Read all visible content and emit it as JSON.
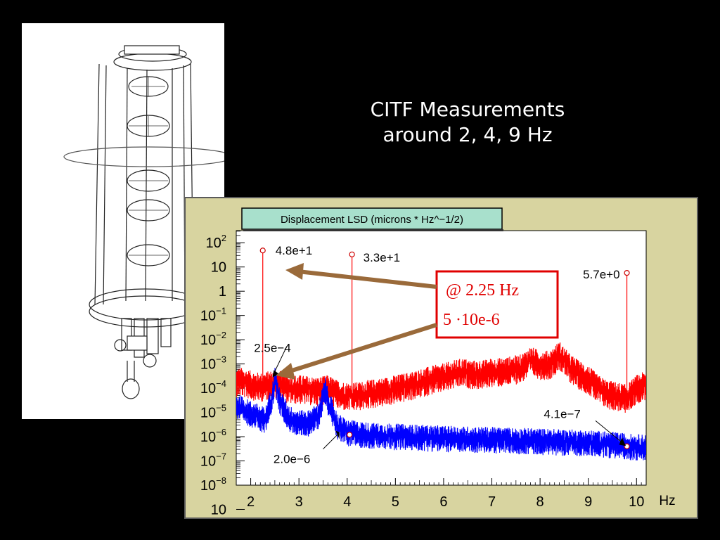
{
  "slide": {
    "title_line1": "CITF Measurements",
    "title_line2": "around 2, 4, 9 Hz"
  },
  "colors": {
    "background": "#000000",
    "frame": "#d8d4a0",
    "plot_bg": "#ffffff",
    "series_red": "#ff0000",
    "series_blue": "#0000ff",
    "callout_border": "#e00000",
    "callout_text": "#e00000",
    "arrow": "#9a6a3a",
    "top_arrow": "#0010e0",
    "bottom_arrow": "#ff3010"
  },
  "chart_data": {
    "type": "line",
    "title": "Displacement LSD (microns * Hz^−1/2)",
    "xlabel": "Hz",
    "ylabel": "",
    "x_scale": "linear",
    "y_scale": "log",
    "xlim": [
      1.7,
      10.2
    ],
    "ylim": [
      1e-08,
      316
    ],
    "x_ticks": [
      "2",
      "3",
      "4",
      "5",
      "6",
      "7",
      "8",
      "9",
      "10"
    ],
    "y_ticks": [
      {
        "base": "10",
        "exp": "2"
      },
      {
        "base": "10",
        "exp": ""
      },
      {
        "base": "1",
        "exp": ""
      },
      {
        "base": "10",
        "exp": "−1"
      },
      {
        "base": "10",
        "exp": "−2"
      },
      {
        "base": "10",
        "exp": "−3"
      },
      {
        "base": "10",
        "exp": "−4"
      },
      {
        "base": "10",
        "exp": "−5"
      },
      {
        "base": "10",
        "exp": "−6"
      },
      {
        "base": "10",
        "exp": "−7"
      },
      {
        "base": "10",
        "exp": "−8"
      },
      {
        "base": "10",
        "exp": ""
      }
    ],
    "series": [
      {
        "color": "red",
        "x": [
          1.8,
          2.0,
          2.2,
          2.4,
          2.6,
          2.8,
          3.0,
          3.2,
          3.4,
          3.6,
          3.8,
          4.0,
          4.2,
          4.4,
          4.6,
          4.8,
          5.0,
          5.2,
          5.4,
          5.6,
          5.8,
          6.0,
          6.2,
          6.4,
          6.6,
          6.8,
          7.0,
          7.2,
          7.4,
          7.6,
          7.8,
          8.0,
          8.2,
          8.4,
          8.6,
          8.8,
          9.0,
          9.2,
          9.4,
          9.6,
          9.8,
          10.0,
          10.2
        ],
        "y": [
          0.0002,
          0.00015,
          0.00012,
          0.00015,
          0.00015,
          0.0001,
          0.0001,
          9e-05,
          8e-05,
          0.0001,
          6e-05,
          5e-05,
          5e-05,
          6e-05,
          7e-05,
          8e-05,
          0.0001,
          0.00012,
          0.00015,
          0.0002,
          0.00025,
          0.0003,
          0.0004,
          0.0005,
          0.0004,
          0.0004,
          0.0005,
          0.0005,
          0.0006,
          0.0007,
          0.0015,
          0.001,
          0.001,
          0.0025,
          0.0008,
          0.0004,
          0.00025,
          0.0001,
          6e-05,
          5e-05,
          4e-05,
          0.0001,
          0.00015
        ],
        "peaks": [
          {
            "x": 2.25,
            "y": 48
          },
          {
            "x": 4.1,
            "y": 33
          },
          {
            "x": 9.8,
            "y": 5.7
          }
        ]
      },
      {
        "color": "blue",
        "x": [
          1.7,
          1.9,
          2.1,
          2.3,
          2.45,
          2.5,
          2.6,
          2.8,
          3.0,
          3.2,
          3.4,
          3.55,
          3.6,
          3.7,
          3.8,
          4.0,
          4.5,
          5.0,
          6.0,
          7.0,
          8.0,
          9.0,
          9.5,
          10.0,
          10.2
        ],
        "y": [
          2e-05,
          1.2e-05,
          8e-06,
          5e-06,
          5e-05,
          0.00025,
          3e-05,
          6e-06,
          4e-06,
          4e-06,
          8e-06,
          0.0001,
          3e-05,
          1e-05,
          3e-06,
          1.6e-06,
          1.2e-06,
          1.1e-06,
          9e-07,
          8e-07,
          7e-07,
          6e-07,
          5e-07,
          4e-07,
          4e-07
        ]
      }
    ],
    "annotations": [
      {
        "text": "4.8e+1",
        "x": 2.25,
        "y": 48
      },
      {
        "text": "3.3e+1",
        "x": 4.1,
        "y": 33
      },
      {
        "text": "5.7e+0",
        "x": 9.8,
        "y": 5.7
      },
      {
        "text": "2.5e−4",
        "x": 2.45,
        "y": 0.00025
      },
      {
        "text": "2.0e−6",
        "x": 3.82,
        "y": 2e-06
      },
      {
        "text": "4.1e−7",
        "x": 9.6,
        "y": 4.1e-07
      }
    ],
    "markers": [
      {
        "x": 2.25,
        "y": 48
      },
      {
        "x": 4.1,
        "y": 33
      },
      {
        "x": 9.8,
        "y": 5.7
      },
      {
        "x": 4.05,
        "y": 1.2e-06
      },
      {
        "x": 9.8,
        "y": 4e-07
      }
    ],
    "callout": {
      "line1": "@ 2.25 Hz",
      "line2": "5 ·10e-6"
    }
  }
}
